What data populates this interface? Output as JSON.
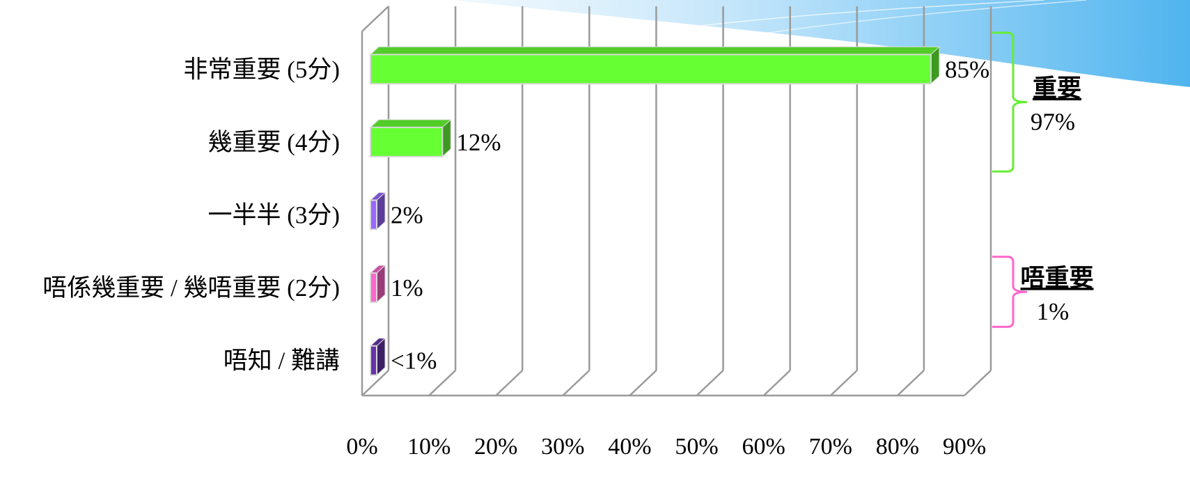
{
  "chart_data": {
    "type": "bar",
    "orientation": "horizontal",
    "categories": [
      "非常重要 (5分)",
      "幾重要 (4分)",
      "一半半 (3分)",
      "唔係幾重要 / 幾唔重要 (2分)",
      "唔知 / 難講"
    ],
    "values": [
      85,
      12,
      2,
      1,
      0.5
    ],
    "value_labels": [
      "85%",
      "12%",
      "2%",
      "1%",
      "<1%"
    ],
    "bar_colors": [
      "#66ff33",
      "#66ff33",
      "#9966ff",
      "#ff66cc",
      "#6633aa"
    ],
    "xlim": [
      0,
      90
    ],
    "xticks": [
      0,
      10,
      20,
      30,
      40,
      50,
      60,
      70,
      80,
      90
    ],
    "xtick_labels": [
      "0%",
      "10%",
      "20%",
      "30%",
      "40%",
      "50%",
      "60%",
      "70%",
      "80%",
      "90%"
    ],
    "grid": true,
    "xlabel": "",
    "ylabel": "",
    "title": "",
    "annotations": [
      {
        "label": "重要",
        "value": "97%",
        "spans_categories": [
          "非常重要 (5分)",
          "幾重要 (4分)"
        ],
        "color": "#66ee33"
      },
      {
        "label": "唔重要",
        "value": "1%",
        "spans_categories": [
          "唔係幾重要 / 幾唔重要 (2分)"
        ],
        "color": "#ff66cc"
      }
    ]
  },
  "decoration": {
    "accent_color": "#5ab8ee"
  }
}
